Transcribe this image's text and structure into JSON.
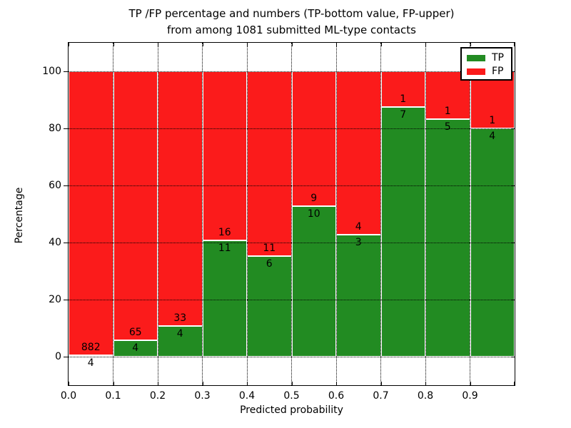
{
  "title": {
    "line1": "TP /FP percentage and numbers (TP-bottom value, FP-upper)",
    "line2": "from among 1081 submitted ML-type contacts"
  },
  "total_contacts": "1081",
  "chart_data": {
    "type": "bar",
    "stacked": true,
    "normalized_to": 100,
    "title": "TP /FP percentage and numbers (TP-bottom value, FP-upper) from among 1081 submitted ML-type contacts",
    "xlabel": "Predicted probability",
    "ylabel": "Percentage",
    "categories": [
      "0.0-0.1",
      "0.1-0.2",
      "0.2-0.3",
      "0.3-0.4",
      "0.4-0.5",
      "0.5-0.6",
      "0.6-0.7",
      "0.7-0.8",
      "0.8-0.9",
      "0.9-1.0"
    ],
    "series": [
      {
        "name": "TP",
        "color": "#228b22",
        "values": [
          4,
          4,
          4,
          11,
          6,
          10,
          3,
          7,
          5,
          4
        ]
      },
      {
        "name": "FP",
        "color": "#fb1b1b",
        "values": [
          882,
          65,
          33,
          16,
          11,
          9,
          4,
          1,
          1,
          1
        ]
      }
    ],
    "bar_label_note": "TP count printed at bottom of green segment, FP count printed above segment boundary",
    "xlim": [
      0.0,
      1.0
    ],
    "ylim": [
      -10,
      110
    ],
    "xtick_labels": [
      "0.0",
      "0.1",
      "0.2",
      "0.3",
      "0.4",
      "0.5",
      "0.6",
      "0.7",
      "0.8",
      "0.9"
    ],
    "ytick_labels": [
      "0",
      "20",
      "40",
      "60",
      "80",
      "100"
    ],
    "yticks": [
      0,
      20,
      40,
      60,
      80,
      100
    ],
    "grid": true,
    "grid_style": "dotted",
    "legend_position": "upper right"
  },
  "legend": {
    "items": [
      {
        "label": "TP",
        "color": "#228b22"
      },
      {
        "label": "FP",
        "color": "#fb1b1b"
      }
    ]
  },
  "axes": {
    "xlabel": "Predicted probability",
    "ylabel": "Percentage"
  }
}
